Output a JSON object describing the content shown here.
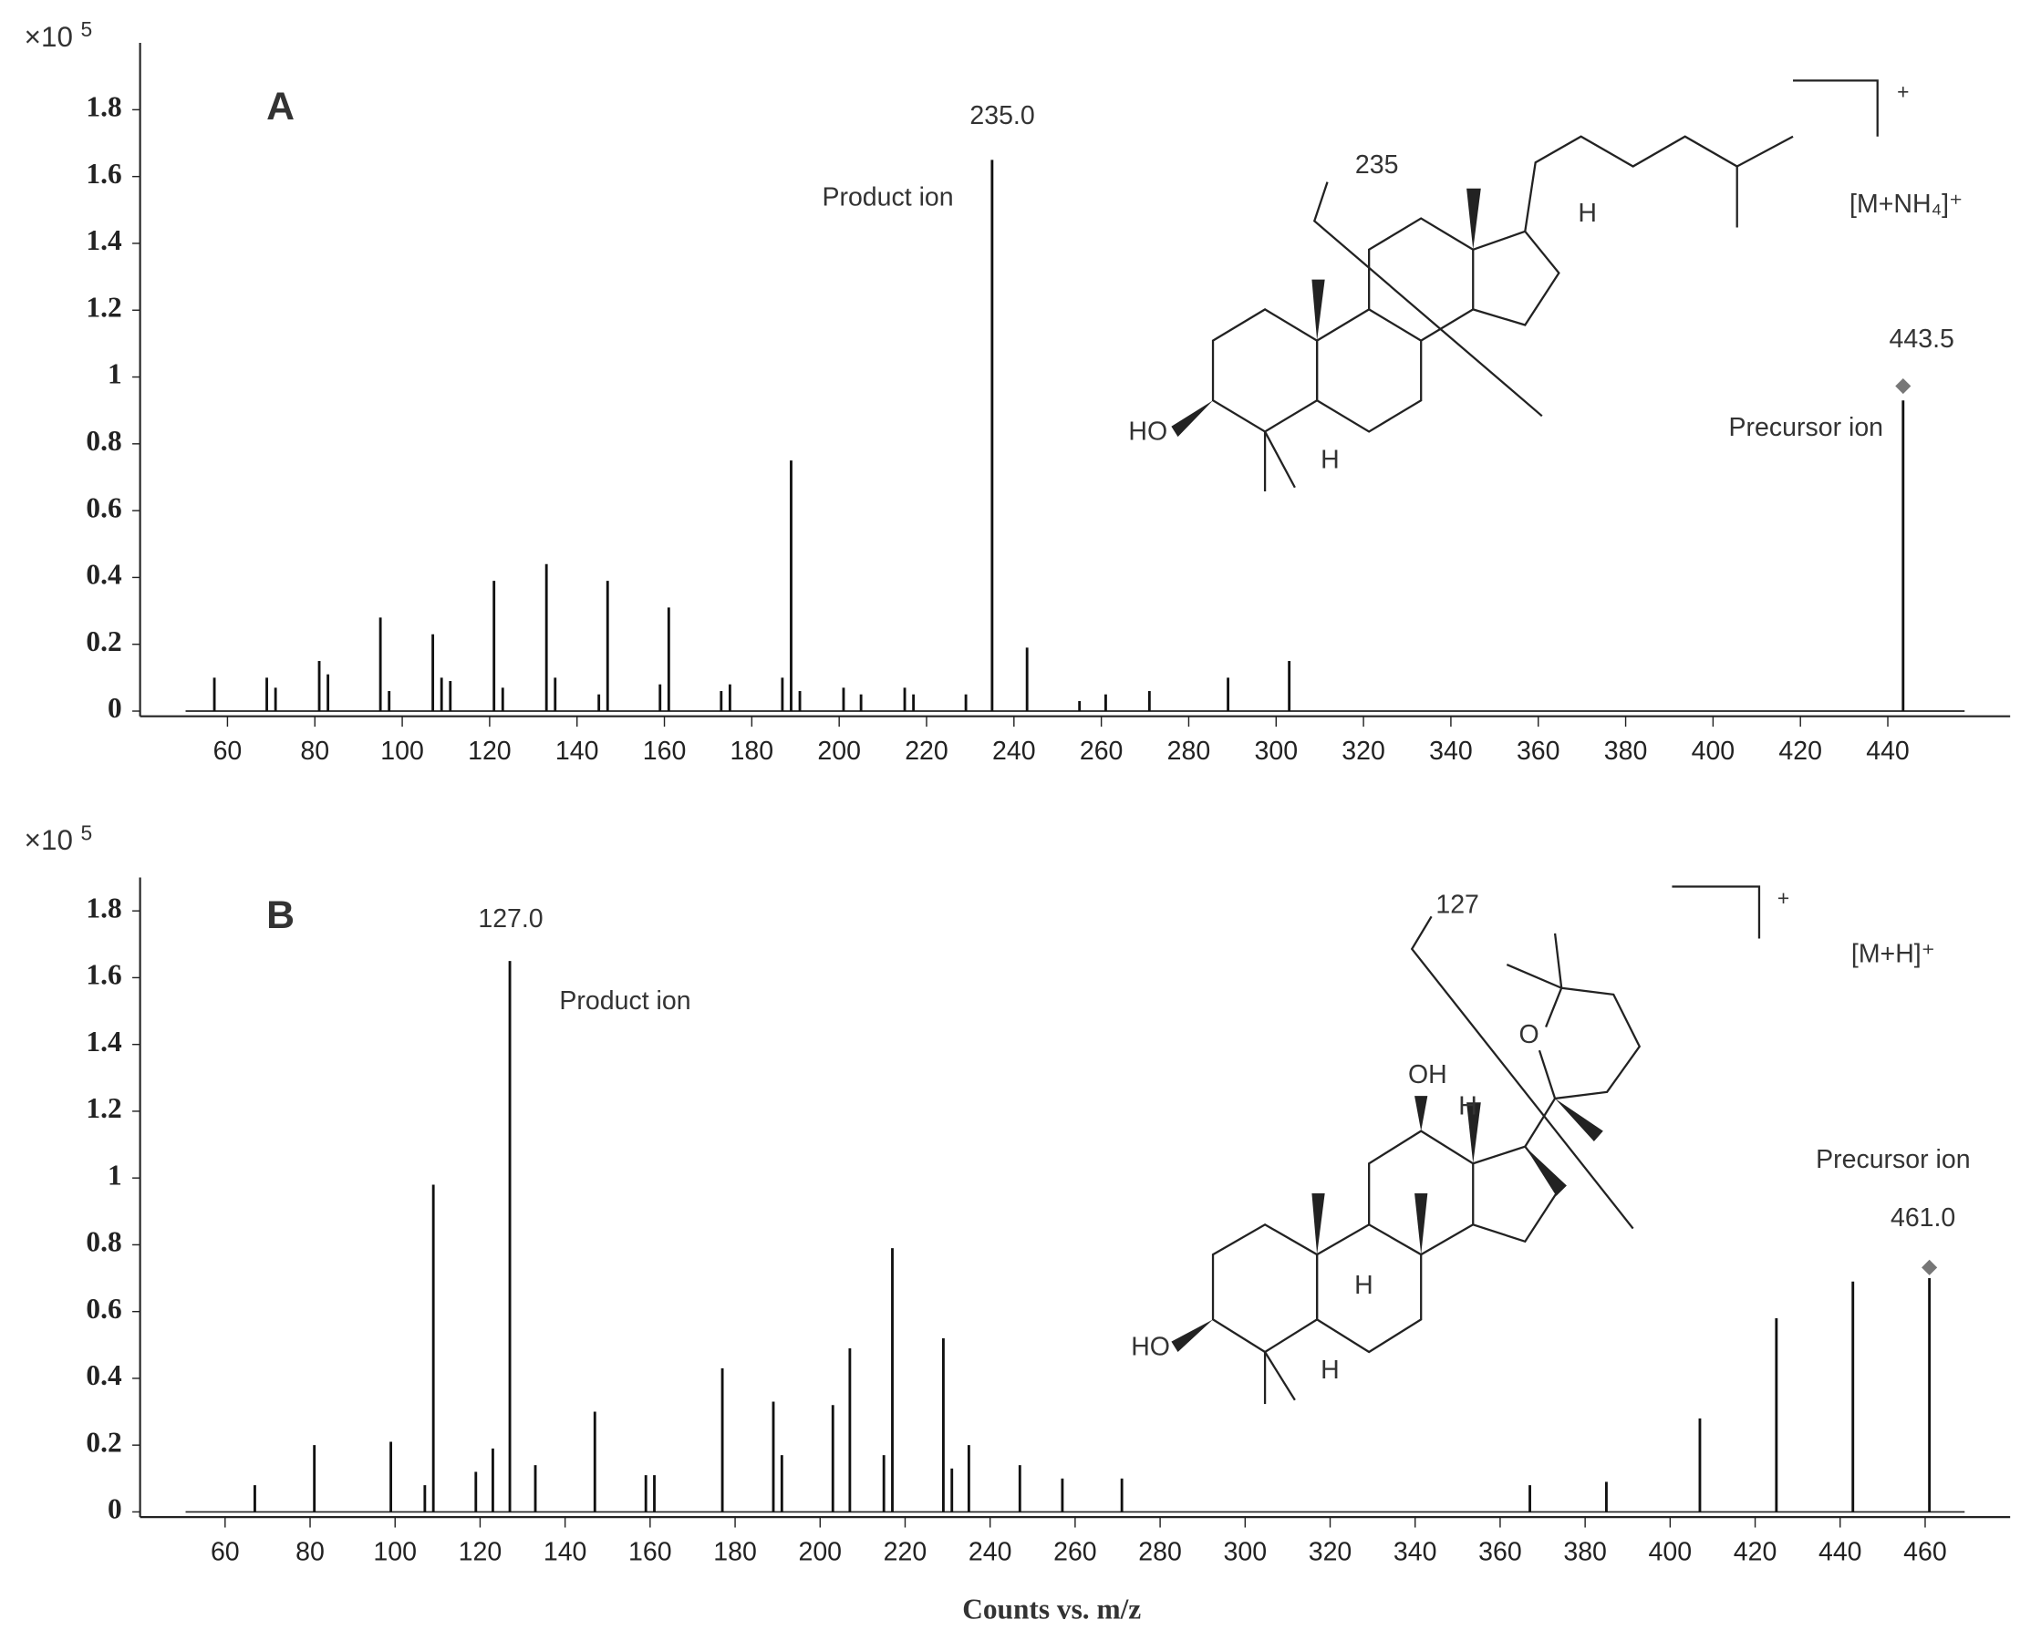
{
  "chart_data": [
    {
      "type": "bar",
      "panel_label": "A",
      "y_unit": "×10",
      "y_unit_exp": "5",
      "x": [
        57,
        69,
        71,
        81,
        83,
        95,
        97,
        107,
        109,
        111,
        121,
        123,
        133,
        135,
        145,
        147,
        159,
        161,
        173,
        175,
        187,
        189,
        191,
        201,
        205,
        215,
        217,
        229,
        235,
        243,
        255,
        261,
        271,
        289,
        303,
        443.5
      ],
      "values": [
        0.1,
        0.1,
        0.07,
        0.15,
        0.11,
        0.28,
        0.06,
        0.23,
        0.1,
        0.09,
        0.39,
        0.07,
        0.44,
        0.1,
        0.05,
        0.39,
        0.08,
        0.31,
        0.06,
        0.08,
        0.1,
        0.75,
        0.06,
        0.07,
        0.05,
        0.07,
        0.05,
        0.05,
        1.65,
        0.19,
        0.03,
        0.05,
        0.06,
        0.1,
        0.15,
        0.93
      ],
      "color": "#111",
      "xlim": [
        40,
        468
      ],
      "ylim": [
        0,
        2
      ],
      "xticks": [
        60,
        80,
        100,
        120,
        140,
        160,
        180,
        200,
        220,
        240,
        260,
        280,
        300,
        320,
        340,
        360,
        380,
        400,
        420,
        440
      ],
      "yticks": [
        0,
        0.2,
        0.4,
        0.6,
        0.8,
        1,
        1.2,
        1.4,
        1.6,
        1.8
      ],
      "peak_label": {
        "value": 235,
        "label": "235.0"
      },
      "product_label": "Product ion",
      "precursor": {
        "value": 443.5,
        "label": "443.5"
      },
      "precursor_label": "Precursor ion",
      "ion_label": "[M+NH₄]⁺",
      "bracket_charge": "+",
      "structure_labels": [
        "235",
        "HO",
        "H",
        "H"
      ]
    },
    {
      "type": "bar",
      "panel_label": "B",
      "y_unit": "×10",
      "y_unit_exp": "5",
      "x_label": "Counts vs. m/z",
      "x": [
        67,
        81,
        99,
        107,
        109,
        119,
        123,
        127,
        133,
        147,
        159,
        161,
        177,
        189,
        191,
        203,
        207,
        215,
        217,
        229,
        231,
        235,
        247,
        257,
        271,
        367,
        385,
        407,
        425,
        443,
        461
      ],
      "values": [
        0.08,
        0.2,
        0.21,
        0.08,
        0.98,
        0.12,
        0.19,
        1.65,
        0.14,
        0.3,
        0.11,
        0.11,
        0.43,
        0.33,
        0.17,
        0.32,
        0.49,
        0.17,
        0.79,
        0.52,
        0.13,
        0.2,
        0.14,
        0.1,
        0.1,
        0.08,
        0.09,
        0.28,
        0.58,
        0.69,
        0.7
      ],
      "color": "#111",
      "xlim": [
        40,
        480
      ],
      "ylim": [
        0,
        1.9
      ],
      "xticks": [
        60,
        80,
        100,
        120,
        140,
        160,
        180,
        200,
        220,
        240,
        260,
        280,
        300,
        320,
        340,
        360,
        380,
        400,
        420,
        440,
        460
      ],
      "yticks": [
        0,
        0.2,
        0.4,
        0.6,
        0.8,
        1,
        1.2,
        1.4,
        1.6,
        1.8
      ],
      "peak_label": {
        "value": 127,
        "label": "127.0"
      },
      "product_label": "Product ion",
      "precursor": {
        "value": 461,
        "label": "461.0"
      },
      "precursor_label": "Precursor ion",
      "ion_label": "[M+H]⁺",
      "bracket_charge": "+",
      "structure_labels": [
        "127",
        "O",
        "OH",
        "H",
        "HO",
        "H",
        "H"
      ]
    }
  ]
}
